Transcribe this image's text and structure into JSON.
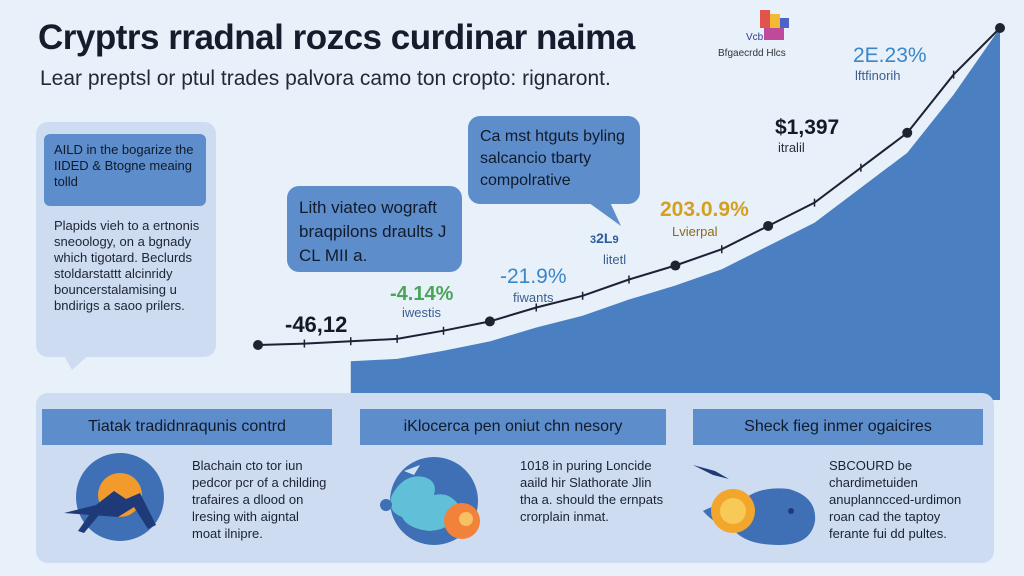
{
  "header": {
    "title": "Cryptrs rradnal rozcs curdinar naima",
    "subtitle": "Lear preptsl or ptul trades palvora camo ton cropto: rignaront.",
    "brand_tagline": "Bfgaecrdd Hlcs",
    "brand_mark_text": "Vcb"
  },
  "side_card": {
    "heading": "AILD in the bogarize the IIDED & Btogne meaing tolld",
    "body": "Plapids vieh to a ertnonis sneoology, on a bgnady which tigotard. Beclurds stoldarstattt alcinridy bouncerstalamising u bndirigs a saoo prilers."
  },
  "bubbles": {
    "left": "Lith viateo wograft braqpilons draults J CL MII a.",
    "right": "Ca mst htguts byling salcancio tbarty compolrative"
  },
  "chart_labels": {
    "start_value": "-46,12",
    "green_pct": "-4.14%",
    "green_sub": "iwestis",
    "blue_pct": "-21.9%",
    "blue_sub": "fiwants",
    "mid_value": "2L",
    "mid_prefix": "3",
    "mid_suffix": "9",
    "mid_sub": "litetl",
    "gold_pct": "203.0.9%",
    "gold_sub": "Lvierpal",
    "price": "$1,397",
    "price_sub": "itralil",
    "top_pct": "2E.23%",
    "top_sub": "lftfinorih"
  },
  "chart_data": {
    "type": "line",
    "x": [
      0,
      1,
      2,
      3,
      4,
      5,
      6,
      7,
      8,
      9,
      10,
      11,
      12,
      13,
      14,
      15,
      16
    ],
    "values": [
      -46.12,
      -45.5,
      -44.5,
      -43.5,
      -40,
      -36,
      -30,
      -25,
      -18,
      -12,
      -5,
      5,
      15,
      30,
      45,
      70,
      90
    ],
    "markers": [
      0,
      5,
      9,
      11,
      14,
      16
    ],
    "colors": {
      "area": "#4a7fc1",
      "line": "#1b2233",
      "marker": "#1e2430"
    }
  },
  "cards": [
    {
      "label": "Tiatak tradidnraqunis contrd",
      "text": "Blachain cto tor iun pedcor pcr of a childing trafaires a dlood on lresing with aigntal moat ilnipre."
    },
    {
      "label": "iKlocerca pen oniut chn nesory",
      "text": "1018 in puring Loncide aaild hir Slathorate Jlin tha a. should the ernpats crorplain inmat."
    },
    {
      "label": "Sheck fieg inmer ogaicires",
      "text": "SBCOURD be chardimetuiden anuplanncced-urdimon roan cad the taptoy ferante fui dd pultes."
    }
  ]
}
